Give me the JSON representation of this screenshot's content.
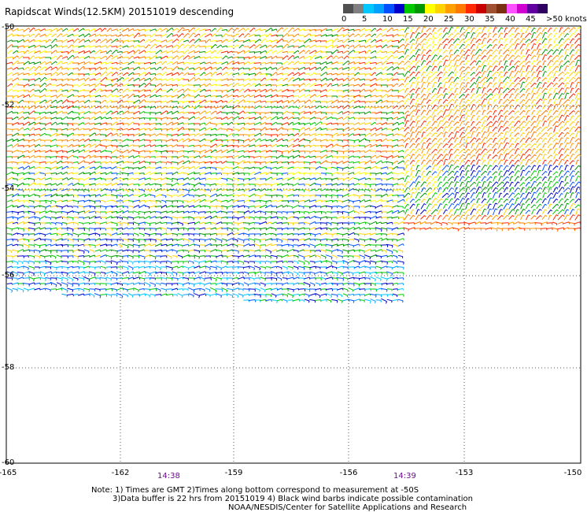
{
  "title": "Rapidscat Winds(12.5KM) 20151019 descending",
  "legend": {
    "labels": [
      "0",
      "5",
      "10",
      "15",
      "20",
      "25",
      "30",
      "35",
      "40",
      "45",
      ">50 knots"
    ],
    "colors": [
      "#505050",
      "#808080",
      "#00c8ff",
      "#00a0ff",
      "#0050ff",
      "#0000c8",
      "#00c800",
      "#009600",
      "#ffff00",
      "#ffd200",
      "#ffa000",
      "#ff7800",
      "#ff2800",
      "#c80000",
      "#a05030",
      "#783010",
      "#ff50ff",
      "#d000d0",
      "#6000a0",
      "#300060"
    ]
  },
  "map": {
    "lon_ticks": [
      "-165",
      "-162",
      "-159",
      "-156",
      "-153",
      "-150"
    ],
    "lat_ticks": [
      "-50",
      "-52",
      "-54",
      "-56",
      "-58",
      "-60"
    ],
    "lon_range": [
      -165,
      -150
    ],
    "lat_range": [
      -50,
      -60
    ],
    "grid": "dotted"
  },
  "times": [
    "14:38",
    "14:39"
  ],
  "notes": {
    "line1": "Note: 1) Times are GMT 2)Times along bottom correspond to measurement at -50S",
    "line2": "3)Data buffer is 22 hrs from 20151019 4) Black wind barbs indicate possible contamination",
    "line3": "NOAA/NESDIS/Center for Satellite Applications and Research"
  }
}
